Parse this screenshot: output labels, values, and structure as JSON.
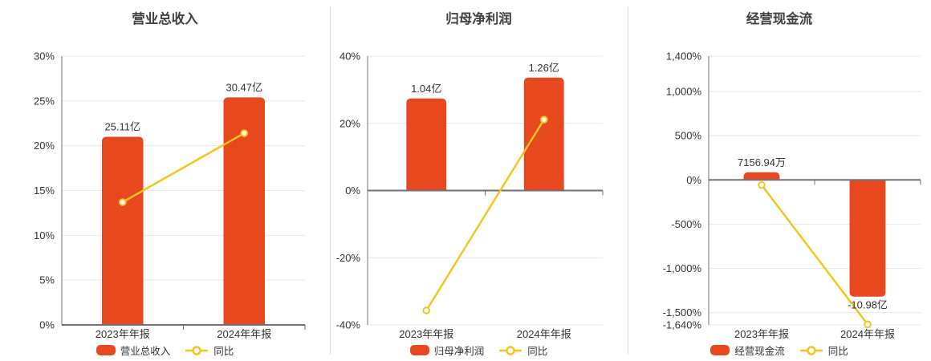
{
  "colors": {
    "bar": "#e8481e",
    "line": "#f6c51e",
    "marker_fill": "#ffffff",
    "grid": "#e4e8f1",
    "axis": "#6e7079",
    "text": "#333333",
    "title": "#404040",
    "divider": "#dcdcdc"
  },
  "chart_data": [
    {
      "type": "bar",
      "title": "营业总收入",
      "categories": [
        "2023年年报",
        "2024年年报"
      ],
      "bar": {
        "name": "营业总收入",
        "value_labels": [
          "25.11亿",
          "30.47亿"
        ],
        "axis_values": [
          21.0,
          25.4
        ]
      },
      "line": {
        "name": "同比",
        "values_pct": [
          13.7,
          21.4
        ]
      },
      "y_axis": {
        "min": 0,
        "max": 30,
        "ticks": [
          30,
          25,
          20,
          15,
          10,
          5,
          0
        ],
        "tick_labels": [
          "30%",
          "25%",
          "20%",
          "15%",
          "10%",
          "5%",
          "0%"
        ]
      },
      "legend_position": "bottom",
      "grid": true
    },
    {
      "type": "bar",
      "title": "归母净利润",
      "categories": [
        "2023年年报",
        "2024年年报"
      ],
      "bar": {
        "name": "归母净利润",
        "value_labels": [
          "1.04亿",
          "1.26亿"
        ],
        "axis_values": [
          27.4,
          33.6
        ]
      },
      "line": {
        "name": "同比",
        "values_pct": [
          -35.7,
          21.1
        ]
      },
      "y_axis": {
        "min": -40,
        "max": 40,
        "ticks": [
          40,
          20,
          0,
          -20,
          -40
        ],
        "tick_labels": [
          "40%",
          "20%",
          "0%",
          "-20%",
          "-40%"
        ]
      },
      "legend_position": "bottom",
      "grid": true
    },
    {
      "type": "bar",
      "title": "经营现金流",
      "categories": [
        "2023年年报",
        "2024年年报"
      ],
      "bar": {
        "name": "经营现金流",
        "value_labels": [
          "7156.94万",
          "-10.98亿"
        ],
        "axis_values": [
          86,
          -1320
        ]
      },
      "line": {
        "name": "同比",
        "values_pct": [
          -58,
          -1634
        ]
      },
      "y_axis": {
        "min": -1640,
        "max": 1400,
        "ticks": [
          1400,
          1000,
          500,
          0,
          -500,
          -1000,
          -1500,
          -1640
        ],
        "tick_labels": [
          "1,400%",
          "1,000%",
          "500%",
          "0%",
          "-500%",
          "-1,000%",
          "-1,500%",
          "-1,640%"
        ]
      },
      "legend_position": "bottom",
      "grid": true
    }
  ]
}
